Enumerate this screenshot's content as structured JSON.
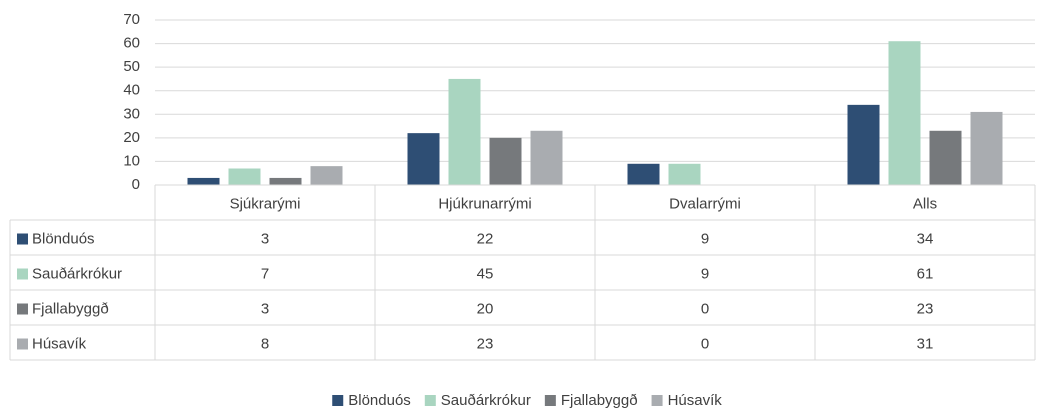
{
  "chart_data": {
    "type": "bar",
    "categories": [
      "Sjúkrarými",
      "Hjúkrunarrými",
      "Dvalarrými",
      "Alls"
    ],
    "series": [
      {
        "name": "Blönduós",
        "color": "#2e4e74",
        "values": [
          3,
          22,
          9,
          34
        ]
      },
      {
        "name": "Sauðárkrókur",
        "color": "#a9d5c0",
        "values": [
          7,
          45,
          9,
          61
        ]
      },
      {
        "name": "Fjallabyggð",
        "color": "#76797c",
        "values": [
          3,
          20,
          0,
          23
        ]
      },
      {
        "name": "Húsavík",
        "color": "#a9acb0",
        "values": [
          8,
          23,
          0,
          31
        ]
      }
    ],
    "ylim": [
      0,
      70
    ],
    "yticks": [
      0,
      10,
      20,
      30,
      40,
      50,
      60,
      70
    ],
    "grid": true,
    "legend": "bottom",
    "data_table": true
  }
}
